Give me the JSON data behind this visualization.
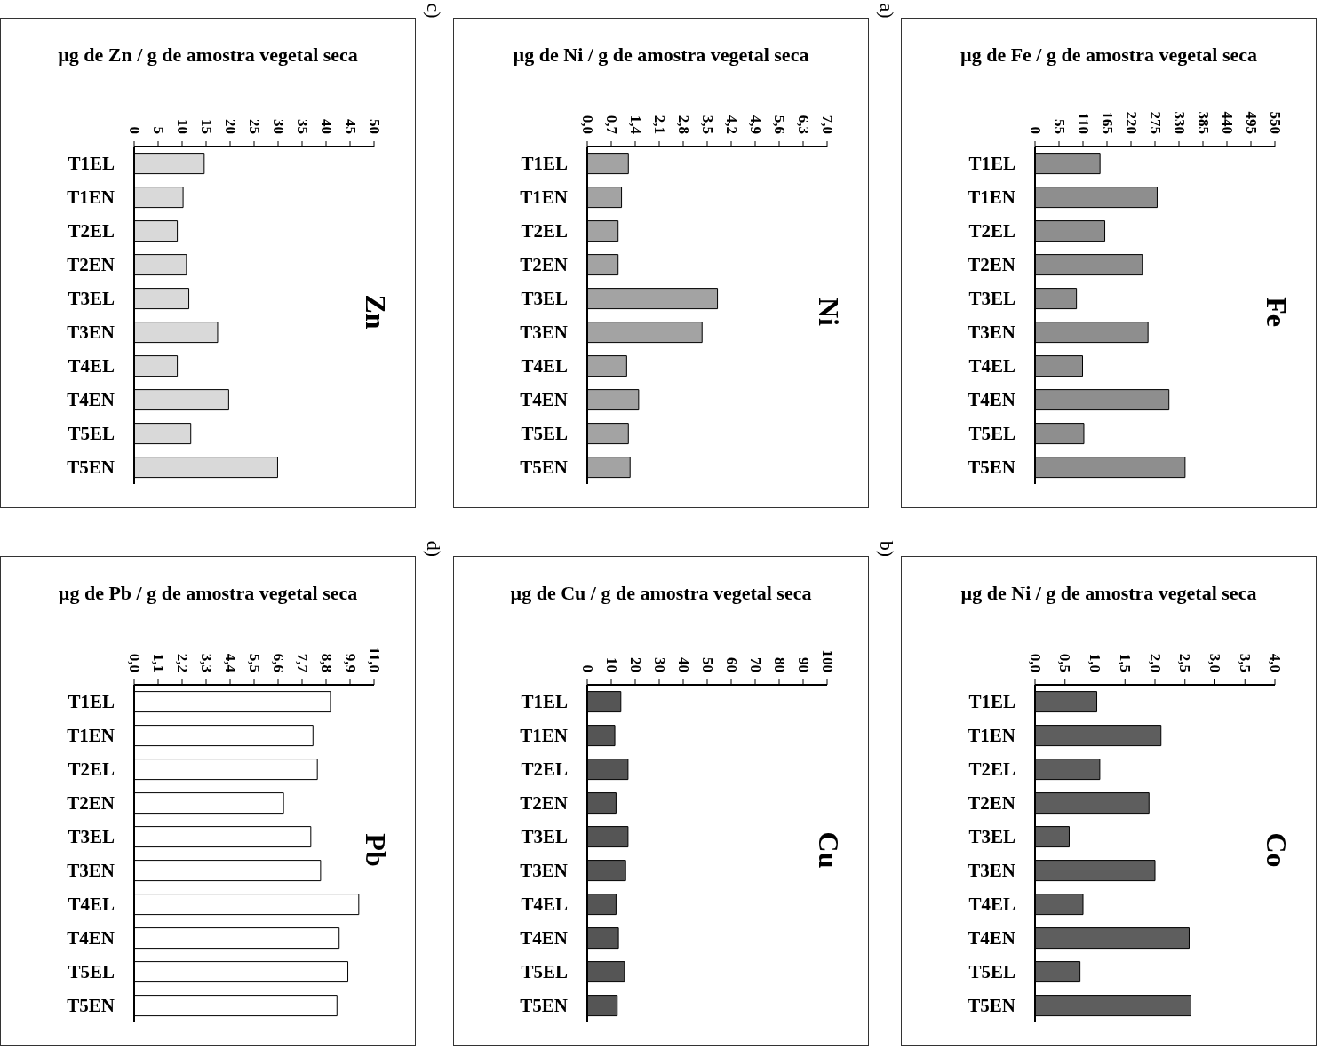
{
  "chart_data": [
    {
      "type": "bar",
      "orientation": "horizontal",
      "title": "µg de Zn / g de amostra vegetal seca",
      "categories": [
        "T1EL",
        "T1EN",
        "T2EL",
        "T2EN",
        "T3EL",
        "T3EN",
        "T4EL",
        "T4EN",
        "T5EL",
        "T5EN"
      ],
      "values": [
        14.6,
        10.2,
        9.0,
        10.9,
        11.4,
        17.4,
        9.0,
        19.7,
        11.8,
        29.9
      ],
      "color": "#d9d9d9",
      "xlim": [
        0,
        50
      ],
      "xticks": [
        0,
        5,
        10,
        15,
        20,
        25,
        30,
        35,
        40,
        45,
        50
      ],
      "annotations": [
        "Zn",
        "c)"
      ]
    },
    {
      "type": "bar",
      "orientation": "horizontal",
      "title": "µg de Ni / g de amostra vegetal seca",
      "categories": [
        "T1EL",
        "T1EN",
        "T2EL",
        "T2EN",
        "T3EL",
        "T3EN",
        "T4EL",
        "T4EN",
        "T5EL",
        "T5EN"
      ],
      "values": [
        1.2,
        1.0,
        0.9,
        0.9,
        3.8,
        3.35,
        1.15,
        1.5,
        1.2,
        1.25
      ],
      "color": "#a3a3a3",
      "xlim": [
        0,
        7
      ],
      "xticks": [
        {
          "value": 0,
          "label": "0,0"
        },
        {
          "value": 0.7,
          "label": "0,7"
        },
        {
          "value": 1.4,
          "label": "1,4"
        },
        {
          "value": 2.1,
          "label": "2,1"
        },
        {
          "value": 2.8,
          "label": "2,8"
        },
        {
          "value": 3.5,
          "label": "3,5"
        },
        {
          "value": 4.2,
          "label": "4,2"
        },
        {
          "value": 4.9,
          "label": "4,9"
        },
        {
          "value": 5.6,
          "label": "5,6"
        },
        {
          "value": 6.3,
          "label": "6,3"
        },
        {
          "value": 7,
          "label": "7,0"
        }
      ],
      "annotations": [
        "Ni",
        "a)"
      ]
    },
    {
      "type": "bar",
      "orientation": "horizontal",
      "title": "µg de Fe / g de amostra vegetal seca",
      "categories": [
        "T1EL",
        "T1EN",
        "T2EL",
        "T2EN",
        "T3EL",
        "T3EN",
        "T4EL",
        "T4EN",
        "T5EL",
        "T5EN"
      ],
      "values": [
        149,
        280,
        160,
        246,
        95,
        259,
        109,
        307,
        112,
        344
      ],
      "color": "#8e8e8e",
      "xlim": [
        0,
        550
      ],
      "xticks": [
        0,
        55,
        110,
        165,
        220,
        275,
        330,
        385,
        440,
        495,
        550
      ],
      "annotations": [
        "Fe"
      ]
    },
    {
      "type": "bar",
      "orientation": "horizontal",
      "title": "µg de Pb / g de amostra vegetal seca",
      "categories": [
        "T1EL",
        "T1EN",
        "T2EL",
        "T2EN",
        "T3EL",
        "T3EN",
        "T4EL",
        "T4EN",
        "T5EL",
        "T5EN"
      ],
      "values": [
        9.0,
        8.2,
        8.4,
        6.85,
        8.1,
        8.55,
        10.3,
        9.4,
        9.8,
        9.3
      ],
      "color": "#ffffff",
      "xlim": [
        0,
        11
      ],
      "xticks": [
        {
          "value": 0,
          "label": "0,0"
        },
        {
          "value": 1.1,
          "label": "1,1"
        },
        {
          "value": 2.2,
          "label": "2,2"
        },
        {
          "value": 3.3,
          "label": "3,3"
        },
        {
          "value": 4.4,
          "label": "4,4"
        },
        {
          "value": 5.5,
          "label": "5,5"
        },
        {
          "value": 6.6,
          "label": "6,6"
        },
        {
          "value": 7.7,
          "label": "7,7"
        },
        {
          "value": 8.8,
          "label": "8,8"
        },
        {
          "value": 9.9,
          "label": "9,9"
        },
        {
          "value": 11,
          "label": "11,0"
        }
      ],
      "annotations": [
        "Pb",
        "d)"
      ]
    },
    {
      "type": "bar",
      "orientation": "horizontal",
      "title": "µg de Cu / g de amostra vegetal seca",
      "categories": [
        "T1EL",
        "T1EN",
        "T2EL",
        "T2EN",
        "T3EL",
        "T3EN",
        "T4EL",
        "T4EN",
        "T5EL",
        "T5EN"
      ],
      "values": [
        14,
        11.5,
        17,
        12,
        17,
        16,
        12,
        13,
        15.5,
        12.5
      ],
      "color": "#555555",
      "xlim": [
        0,
        100
      ],
      "xticks": [
        0,
        10,
        20,
        30,
        40,
        50,
        60,
        70,
        80,
        90,
        100
      ],
      "annotations": [
        "Cu",
        "b)"
      ]
    },
    {
      "type": "bar",
      "orientation": "horizontal",
      "title": "µg de Ni / g de amostra vegetal seca",
      "categories": [
        "T1EL",
        "T1EN",
        "T2EL",
        "T2EN",
        "T3EL",
        "T3EN",
        "T4EL",
        "T4EN",
        "T5EL",
        "T5EN"
      ],
      "values": [
        1.03,
        2.1,
        1.08,
        1.9,
        0.57,
        2.0,
        0.8,
        2.57,
        0.75,
        2.6
      ],
      "color": "#5e5e5e",
      "xlim": [
        0,
        4
      ],
      "xticks": [
        {
          "value": 0,
          "label": "0,0"
        },
        {
          "value": 0.5,
          "label": "0,5"
        },
        {
          "value": 1,
          "label": "1,0"
        },
        {
          "value": 1.5,
          "label": "1,5"
        },
        {
          "value": 2,
          "label": "2,0"
        },
        {
          "value": 2.5,
          "label": "2,5"
        },
        {
          "value": 3,
          "label": "3,0"
        },
        {
          "value": 3.5,
          "label": "3,5"
        },
        {
          "value": 4,
          "label": "4,0"
        }
      ],
      "annotations": [
        "Co"
      ]
    }
  ]
}
